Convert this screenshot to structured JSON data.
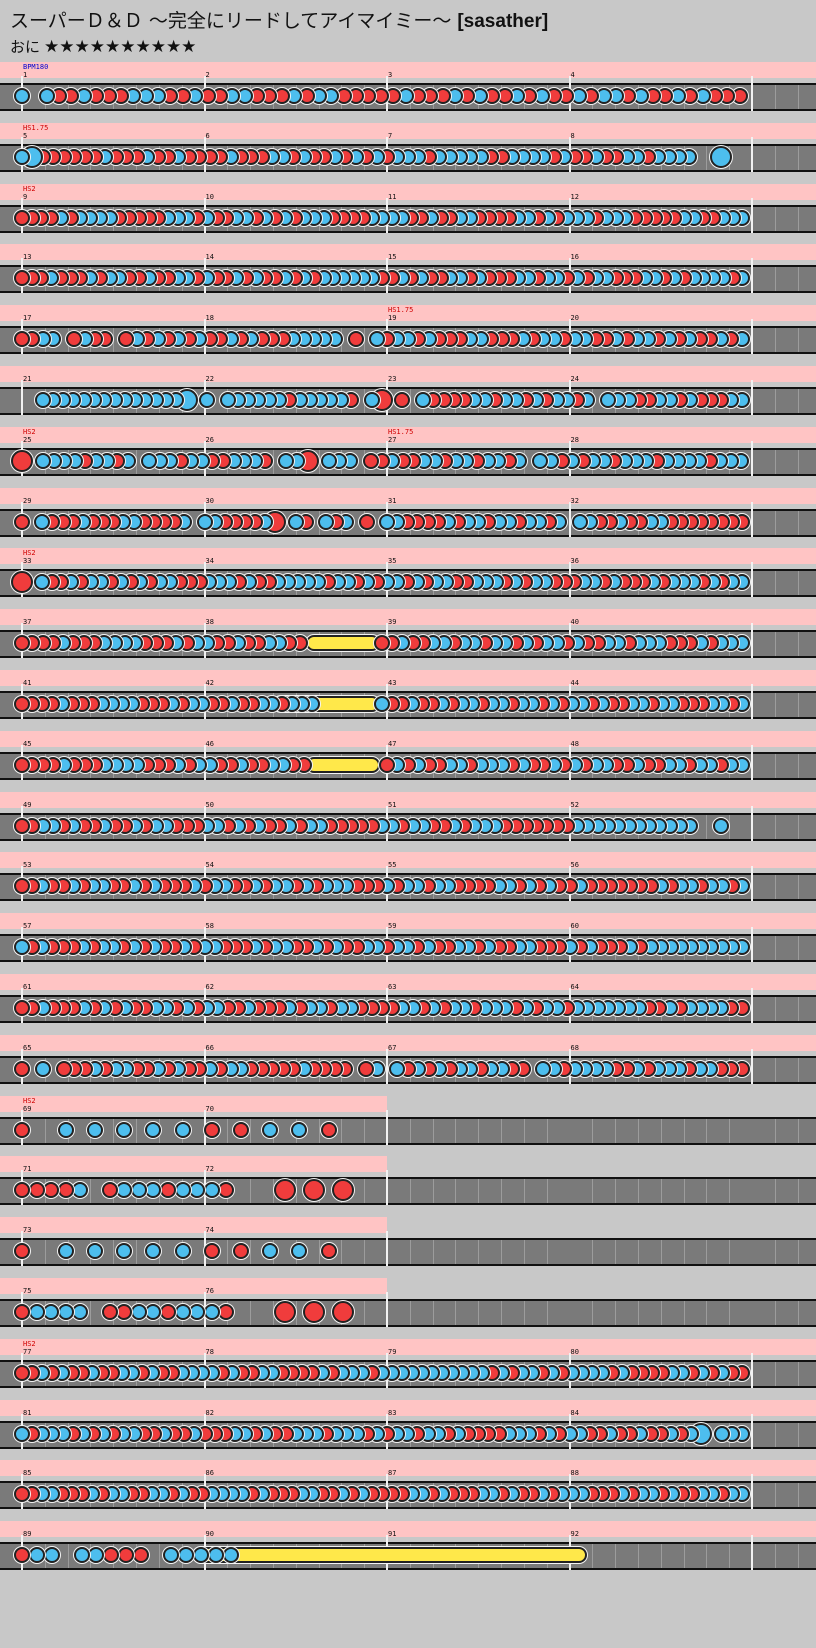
{
  "header": {
    "title": "スーパーＤ＆Ｄ 〜完全にリードしてアイマイミー〜",
    "author": "[sasather]",
    "difficulty_label": "おに",
    "stars": "★★★★★★★★★★",
    "star_count": 10
  },
  "colors": {
    "background": "#c8c8c8",
    "scroll_band": "#ffc4c4",
    "lane": "#7a7a7a",
    "don": "#f03c3c",
    "ka": "#4dbeee",
    "roll": "#ffe84a",
    "event_text": "#d00000",
    "bpm_text": "#0000d0"
  },
  "rows": [
    {
      "measures": [
        "1",
        "2",
        "3",
        "4"
      ],
      "events": [
        {
          "m": 0,
          "text": "BPM180",
          "type": "bpm"
        }
      ],
      "band": 4,
      "notes": "b.sddkdddkksddkddkkdddkdkbdddddkdddkdsddkdkddkdkkdkddkdkddd",
      "rolls": []
    },
    {
      "measures": [
        "5",
        "6",
        "7",
        "8"
      ],
      "events": [
        {
          "m": 0,
          "text": "HS1.75",
          "type": "hs"
        }
      ],
      "band": 4,
      "notes": "kcddddddkdddkddkddddkdddkkdkddkdkdkdkkkdkkkkkddkkkkdkddkddkkdkkkk..c..",
      "rolls": []
    },
    {
      "measures": [
        "9",
        "10",
        "11",
        "12"
      ],
      "events": [
        {
          "m": 0,
          "text": "HS2",
          "type": "hs"
        }
      ],
      "band": 4,
      "notes": "ddddkdkkkkdddddkkkdkddkkdkdkdkkkddddkkkkddkddkkddddkkdkdkkkdkkkdddddkkddkkk",
      "rolls": []
    },
    {
      "measures": [
        "13",
        "14",
        "15",
        "16"
      ],
      "events": [],
      "band": 4,
      "notes": "dddkdddkdkkddkddkkdkddkdkddkdkdkkkkkkddkdkddkkdkdddkkdkkdkdkkdddkkdkdkkkkdk",
      "rolls": []
    },
    {
      "measures": [
        "17",
        "18",
        "19",
        "20"
      ],
      "events": [
        {
          "m": 2,
          "text": "HS1.75",
          "type": "hs"
        }
      ],
      "band": 4,
      "notes": "ddkk.dkdd.dkdkdkdkddkdkdddkkkkk.d.kdkkdkdddkkdddkdkkdkkddkdkkdkdkddkdk",
      "rolls": []
    },
    {
      "measures": [
        "21",
        "22",
        "23",
        "24"
      ],
      "events": [],
      "band": 4,
      "notes": "..kkkkkkkkkkkkkkc.k.kkkkkkdkkkkkD.kB.d.kddddkkdkkdkdkkdk.kkkddkkdkdddkk",
      "rolls": []
    },
    {
      "measures": [
        "25",
        "26",
        "27",
        "28"
      ],
      "events": [
        {
          "m": 0,
          "text": "HS2",
          "type": "hs"
        },
        {
          "m": 2,
          "text": "HS1.75",
          "type": "hs"
        }
      ],
      "band": 4,
      "notes": "B.kkkkdkkdk.kkkdkkddkkkd.kkB.kkk.ddkddkkdkkdkkdk.kkdkdkkdkkkdkkkkdkkk",
      "rolls": []
    },
    {
      "measures": [
        "29",
        "30",
        "31",
        "32"
      ],
      "events": [],
      "band": 4,
      "notes": "d.kdddkdddkkddddk.kkddddkB.kD.kdk.d.kkddddkdkkdkkdkkdk.kkddkddkkdddddddd",
      "rolls": []
    },
    {
      "measures": [
        "33",
        "34",
        "35",
        "36"
      ],
      "events": [
        {
          "m": 0,
          "text": "HS2",
          "type": "hs"
        }
      ],
      "band": 4,
      "notes": "B.kddkdkkdkdkdkkdddkkkdkddkkkkkdkkdkdkkdkdkkddkkkdkdkkdddkkdkdddkdkkkdkdkk",
      "rolls": []
    },
    {
      "measures": [
        "37",
        "38",
        "39",
        "40"
      ],
      "events": [],
      "band": 4,
      "notes": "ddddkdddkkkkdddkdkkddkddkkdd.......ddkddkkdkkdkkdkdkkdkddkkdkkkdddkdkkk",
      "rolls": [
        {
          "start": 1.6,
          "end": 1.92
        }
      ]
    },
    {
      "measures": [
        "41",
        "42",
        "43",
        "44"
      ],
      "events": [],
      "band": 4,
      "notes": "ddddkdddkkkkdddkdkkddkddkkdkkk......kddkddkdkkdkkdkkdkdkkdkddkkdkkdddkkdk",
      "rolls": [
        {
          "start": 1.42,
          "end": 1.92
        }
      ]
    },
    {
      "measures": [
        "45",
        "46",
        "47",
        "48"
      ],
      "events": [],
      "band": 4,
      "notes": "ddddkdddkkkkdddkdkkddkddkkdd.......dkdkddkkdkkkdkddkdkdkkddkddkkdkkdkk",
      "rolls": [
        {
          "start": 1.6,
          "end": 1.92
        }
      ]
    },
    {
      "measures": [
        "49",
        "50",
        "51",
        "52"
      ],
      "events": [],
      "band": 4,
      "notes": "ddkkdkddkddkdkkdddkkdkdkddkdkkdddddkkdkkddkdkkkdddddddkkkkkkkkkkkk..k..",
      "rolls": []
    },
    {
      "measures": [
        "53",
        "54",
        "55",
        "56"
      ],
      "events": [],
      "band": 4,
      "notes": "ddkddkdkkddkdkdddkdkkddkdkkdkdkkkdddkdkkdkkddddkkdkdkddkdddddddkdkkdkkdk",
      "rolls": []
    },
    {
      "measures": [
        "57",
        "58",
        "59",
        "60"
      ],
      "events": [],
      "band": 4,
      "notes": "kdkdddkdkkdkdkddkdkkdddkdkkddkdkddkkdkkdkddkkdkddkkdddkdkdddkdkkkkkkkkkk",
      "rolls": []
    },
    {
      "measures": [
        "61",
        "62",
        "63",
        "64"
      ],
      "events": [],
      "band": 4,
      "notes": "ddkdddkdkdkddkkdkdkkddkdddkdkkdkkddddkkdkdkkdkkkdkdkkdkkkkkkkddkdkkkkdd",
      "rolls": []
    },
    {
      "measures": [
        "65",
        "66",
        "67",
        "68"
      ],
      "events": [],
      "band": 4,
      "notes": "d.k.dddkdkkddkdkddkdkkdddddkdddd.dk.kdkdkdkkdkkdd.kkdkkkkddkdkkkdkkddd",
      "rolls": []
    },
    {
      "measures": [
        "69",
        "70"
      ],
      "events": [
        {
          "m": 0,
          "text": "HS2",
          "type": "hs"
        }
      ],
      "band": 2,
      "notes": "d.....k...k...k...k...k...d...d...k...k...d.......",
      "rolls": []
    },
    {
      "measures": [
        "71",
        "72"
      ],
      "events": [],
      "band": 2,
      "notes": "d.d.d.d.k...d.k.k.k.d.k.k.k.d.......B...B...B.....",
      "rolls": []
    },
    {
      "measures": [
        "73",
        "74"
      ],
      "events": [],
      "band": 2,
      "notes": "d.....k...k...k...k...k...d...d...k...k...d.......",
      "rolls": []
    },
    {
      "measures": [
        "75",
        "76"
      ],
      "events": [],
      "band": 2,
      "notes": "d.k.k.k.k...d.d.k.k.d.k.k.k.d.......B...B...B.....",
      "rolls": []
    },
    {
      "measures": [
        "77",
        "78",
        "79",
        "80"
      ],
      "events": [
        {
          "m": 0,
          "text": "HS2",
          "type": "hs"
        }
      ],
      "band": 4,
      "notes": "ddkdkddkddkkdkddkkkkdkddkkddddkdkkkdkkkkkkkkkkkdkdkkdkdkkkkdkddddkkdkdkdd",
      "rolls": []
    },
    {
      "measures": [
        "81",
        "82",
        "83",
        "84"
      ],
      "events": [],
      "band": 4,
      "notes": "kdkkkdkdkdkkddkddkdddkkdkddkkkdkkkdkdkkdkkdkddddkkkdkdkkddkddkddkdkc.kkk",
      "rolls": []
    },
    {
      "measures": [
        "85",
        "86",
        "87",
        "88"
      ],
      "events": [],
      "band": 4,
      "notes": "ddkkdddkdkkddkkdkddkkkkdkdddkkddkdkddddkkdkdddkkdkddkdkkkdddkdkkdkddkkdkk",
      "rolls": []
    },
    {
      "measures": [
        "89",
        "90",
        "91",
        "92"
      ],
      "events": [],
      "band": 4,
      "notes": "dkk.kkddd.kkkkk..................................",
      "rolls": [
        {
          "start": 0.98,
          "end": 3.05
        }
      ]
    }
  ]
}
